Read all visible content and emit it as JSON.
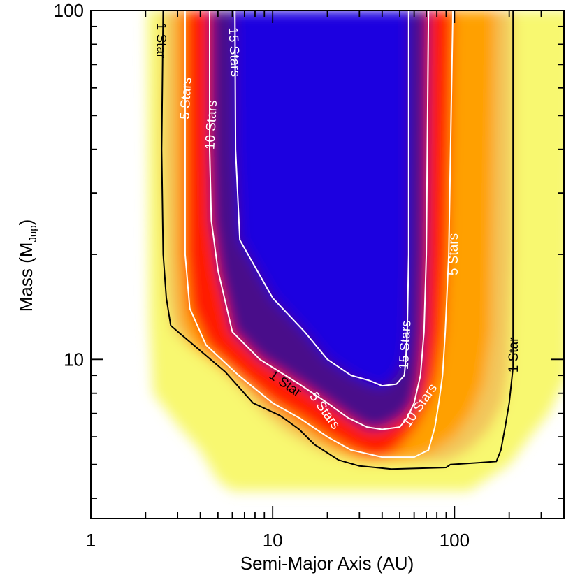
{
  "chart_data": {
    "type": "heatmap",
    "title": "",
    "xlabel": "Semi-Major Axis (AU)",
    "ylabel_main": "Mass (M",
    "ylabel_sub": "Jup",
    "ylabel_close": ")",
    "x_scale": "log",
    "y_scale": "log",
    "xlim": [
      1,
      400
    ],
    "ylim": [
      3.5,
      100
    ],
    "x_ticks": [
      {
        "value": 1,
        "label": "1"
      },
      {
        "value": 10,
        "label": "10"
      },
      {
        "value": 100,
        "label": "100"
      }
    ],
    "y_ticks": [
      {
        "value": 10,
        "label": "10"
      },
      {
        "value": 100,
        "label": "100"
      }
    ],
    "colors": {
      "level_0": "#ffffff",
      "level_1": "#f8f870",
      "level_3": "#ffa000",
      "level_5": "#ff1a00",
      "level_10": "#4a0a8a",
      "level_15": "#1e00e0",
      "contour_low": "#000000",
      "contour_high": "#ffffff"
    },
    "field_regions": [
      {
        "level": 0.4,
        "left": [
          [
            100,
            2.05
          ],
          [
            13,
            2.1
          ],
          [
            8,
            2.2
          ],
          [
            6.5,
            3.0
          ],
          [
            5.5,
            4.0
          ],
          [
            4.5,
            5.0
          ],
          [
            4.2,
            6.0
          ]
        ],
        "right": [
          [
            100,
            450
          ],
          [
            9,
            420
          ],
          [
            7,
            330
          ],
          [
            6,
            260
          ],
          [
            5,
            200
          ],
          [
            4.2,
            120
          ]
        ],
        "bottom": 3.9
      },
      {
        "level": 1,
        "left": [
          [
            100,
            2.5
          ],
          [
            40,
            2.45
          ],
          [
            15,
            2.6
          ],
          [
            12,
            2.85
          ],
          [
            9.2,
            5.5
          ],
          [
            7,
            9
          ],
          [
            6.2,
            12
          ],
          [
            5.5,
            18
          ],
          [
            5.1,
            30
          ]
        ],
        "right": [
          [
            100,
            210
          ],
          [
            20,
            210
          ],
          [
            9.5,
            200
          ],
          [
            7.5,
            185
          ],
          [
            6.3,
            155
          ],
          [
            5.5,
            120
          ],
          [
            5.1,
            90
          ]
        ],
        "bottom": 4.8
      },
      {
        "level": 3,
        "left": [
          [
            100,
            2.9
          ],
          [
            20,
            2.95
          ],
          [
            13,
            3.1
          ],
          [
            11,
            3.5
          ],
          [
            9,
            6.0
          ],
          [
            7.5,
            9
          ],
          [
            6.5,
            13
          ],
          [
            5.5,
            21
          ],
          [
            5.1,
            30
          ]
        ],
        "right": [
          [
            100,
            170
          ],
          [
            12,
            160
          ],
          [
            8.5,
            145
          ],
          [
            7,
            125
          ],
          [
            6,
            100
          ],
          [
            5.3,
            70
          ],
          [
            5.1,
            50
          ]
        ],
        "bottom": 5.05
      },
      {
        "level": 5,
        "left": [
          [
            100,
            3.3
          ],
          [
            20,
            3.3
          ],
          [
            14,
            3.5
          ],
          [
            11,
            4.3
          ],
          [
            9,
            6.5
          ],
          [
            7.5,
            10
          ],
          [
            6.8,
            14
          ],
          [
            6,
            20
          ],
          [
            5.5,
            27
          ],
          [
            5.2,
            35
          ]
        ],
        "right": [
          [
            100,
            98
          ],
          [
            20,
            92
          ],
          [
            12,
            87
          ],
          [
            9,
            80
          ],
          [
            7.5,
            72
          ],
          [
            6.3,
            60
          ],
          [
            5.5,
            48
          ],
          [
            5.2,
            40
          ]
        ],
        "bottom": 5.25
      },
      {
        "level": 10,
        "left": [
          [
            100,
            4.5
          ],
          [
            40,
            4.5
          ],
          [
            25,
            4.6
          ],
          [
            18,
            5.0
          ],
          [
            12,
            6.0
          ],
          [
            10,
            8.5
          ],
          [
            8.5,
            14
          ],
          [
            7.5,
            20
          ],
          [
            6.8,
            26
          ],
          [
            6.3,
            33
          ]
        ],
        "right": [
          [
            100,
            72
          ],
          [
            20,
            70
          ],
          [
            12,
            68
          ],
          [
            9,
            65
          ],
          [
            7.5,
            60
          ],
          [
            6.8,
            52
          ],
          [
            6.3,
            40
          ]
        ],
        "bottom": 6.3
      },
      {
        "level": 15,
        "left": [
          [
            100,
            6.2
          ],
          [
            40,
            6.25
          ],
          [
            22,
            6.6
          ],
          [
            15,
            10
          ],
          [
            12,
            15
          ],
          [
            10,
            20
          ],
          [
            9,
            27
          ],
          [
            8.5,
            34
          ],
          [
            8.3,
            40
          ]
        ],
        "right": [
          [
            100,
            56
          ],
          [
            20,
            56
          ],
          [
            12,
            55
          ],
          [
            10,
            53
          ],
          [
            9,
            48
          ],
          [
            8.5,
            43
          ],
          [
            8.3,
            40
          ]
        ],
        "bottom": 8.3
      }
    ],
    "contours": [
      {
        "label": "1 Star",
        "level": 1,
        "color": "#000000",
        "points": [
          [
            100,
            2.5
          ],
          [
            40,
            2.45
          ],
          [
            20,
            2.5
          ],
          [
            15,
            2.6
          ],
          [
            12.5,
            2.75
          ],
          [
            9.2,
            5.5
          ],
          [
            7.5,
            7.8
          ],
          [
            6.9,
            11
          ],
          [
            6.3,
            14
          ],
          [
            5.7,
            17
          ],
          [
            5.4,
            20
          ],
          [
            5.15,
            23
          ],
          [
            4.95,
            30
          ],
          [
            4.85,
            45
          ],
          [
            4.9,
            90
          ],
          [
            5.0,
            95
          ],
          [
            5.05,
            130
          ],
          [
            5.1,
            170
          ],
          [
            5.5,
            180
          ],
          [
            6.4,
            190
          ],
          [
            7.5,
            200
          ],
          [
            9.5,
            210
          ],
          [
            20,
            210
          ],
          [
            100,
            210
          ]
        ]
      },
      {
        "label": "5 Stars",
        "level": 5,
        "color": "#ffffff",
        "points": [
          [
            100,
            3.3
          ],
          [
            20,
            3.3
          ],
          [
            14,
            3.5
          ],
          [
            11,
            4.3
          ],
          [
            9,
            6.5
          ],
          [
            7.5,
            10
          ],
          [
            6.8,
            14
          ],
          [
            6,
            20
          ],
          [
            5.5,
            27
          ],
          [
            5.25,
            40
          ],
          [
            5.25,
            60
          ],
          [
            5.5,
            72
          ],
          [
            6.4,
            78
          ],
          [
            7.5,
            82
          ],
          [
            9,
            86
          ],
          [
            12,
            89
          ],
          [
            20,
            93
          ],
          [
            100,
            98
          ]
        ]
      },
      {
        "label": "10 Stars",
        "level": 10,
        "color": "#ffffff",
        "points": [
          [
            100,
            4.5
          ],
          [
            40,
            4.5
          ],
          [
            25,
            4.6
          ],
          [
            18,
            5.0
          ],
          [
            12,
            6.0
          ],
          [
            10,
            8.5
          ],
          [
            8.5,
            14
          ],
          [
            7.5,
            20
          ],
          [
            6.8,
            26
          ],
          [
            6.4,
            33
          ],
          [
            6.3,
            40
          ],
          [
            6.4,
            50
          ],
          [
            6.8,
            55
          ],
          [
            7.5,
            60
          ],
          [
            9,
            65
          ],
          [
            12,
            68
          ],
          [
            20,
            70
          ],
          [
            100,
            72
          ]
        ]
      },
      {
        "label": "15 Stars",
        "level": 15,
        "color": "#ffffff",
        "points": [
          [
            100,
            6.2
          ],
          [
            40,
            6.25
          ],
          [
            22,
            6.6
          ],
          [
            15,
            10
          ],
          [
            12,
            15
          ],
          [
            10,
            20
          ],
          [
            9,
            27
          ],
          [
            8.7,
            34
          ],
          [
            8.4,
            40
          ],
          [
            8.5,
            48
          ],
          [
            9,
            53
          ],
          [
            10,
            54
          ],
          [
            12,
            55
          ],
          [
            20,
            56
          ],
          [
            100,
            56
          ]
        ]
      }
    ],
    "annotations": [
      {
        "text": "1 Star",
        "x": 2.45,
        "y": 82,
        "angle": 90
      },
      {
        "text": "5 Stars",
        "x": 3.3,
        "y": 56,
        "angle": -87
      },
      {
        "text": "10 Stars",
        "x": 4.55,
        "y": 47,
        "angle": -87
      },
      {
        "text": "15 Stars",
        "x": 6.2,
        "y": 76,
        "angle": 87
      },
      {
        "text": "5 Stars",
        "x": 98,
        "y": 20,
        "angle": -90
      },
      {
        "text": "1 Star",
        "x": 210,
        "y": 10.3,
        "angle": -90
      },
      {
        "text": "1 Star",
        "x": 11.8,
        "y": 8.55,
        "angle": 34
      },
      {
        "text": "5 Stars",
        "x": 19.5,
        "y": 7.15,
        "angle": 54
      },
      {
        "text": "15 Stars",
        "x": 53,
        "y": 11,
        "angle": -87
      },
      {
        "text": "10 Stars",
        "x": 64,
        "y": 7.4,
        "angle": -55
      }
    ]
  }
}
